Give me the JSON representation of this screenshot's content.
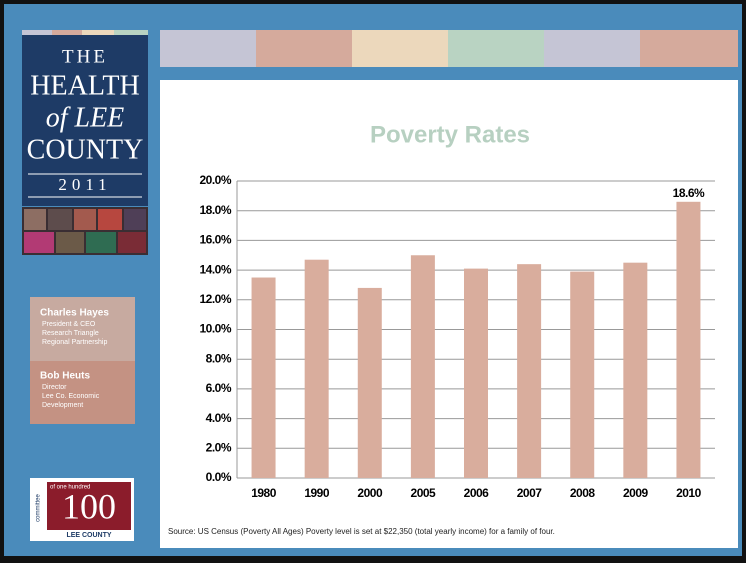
{
  "sidebar": {
    "logo": {
      "line1": "THE",
      "line2": "HEALTH",
      "line3": "of LEE",
      "line4": "COUNTY",
      "year": "2011"
    },
    "people": [
      {
        "name": "Charles Hayes",
        "lines": [
          "President & CEO",
          "Research Triangle",
          "Regional Partnership"
        ]
      },
      {
        "name": "Bob Heuts",
        "lines": [
          "Director",
          "Lee Co. Economic",
          "Development"
        ]
      }
    ],
    "badge": {
      "side": "committee",
      "top": "of one hundred",
      "number": "100",
      "bottom": "LEE COUNTY"
    }
  },
  "chart_data": {
    "type": "bar",
    "title": "Poverty Rates",
    "categories": [
      "1980",
      "1990",
      "2000",
      "2005",
      "2006",
      "2007",
      "2008",
      "2009",
      "2010"
    ],
    "values": [
      13.5,
      14.7,
      12.8,
      15.0,
      14.1,
      14.4,
      13.9,
      14.5,
      18.6
    ],
    "value_labels": [
      null,
      null,
      null,
      null,
      null,
      null,
      null,
      null,
      "18.6%"
    ],
    "color": "#d9ad9d",
    "ylim": [
      0,
      20
    ],
    "yticks": [
      {
        "value": 0,
        "label": "0.0%"
      },
      {
        "value": 2,
        "label": "2.0%"
      },
      {
        "value": 4,
        "label": "4.0%"
      },
      {
        "value": 6,
        "label": "6.0%"
      },
      {
        "value": 8,
        "label": "8.0%"
      },
      {
        "value": 10,
        "label": "10.0%"
      },
      {
        "value": 12,
        "label": "12.0%"
      },
      {
        "value": 14,
        "label": "14.0%"
      },
      {
        "value": 16,
        "label": "16.0%"
      },
      {
        "value": 18,
        "label": "18.0%"
      },
      {
        "value": 20,
        "label": "20.0%"
      }
    ],
    "grid": true,
    "source": "Source: US Census (Poverty All Ages) Poverty level is set at $22,350 (total yearly income) for a family of four."
  }
}
